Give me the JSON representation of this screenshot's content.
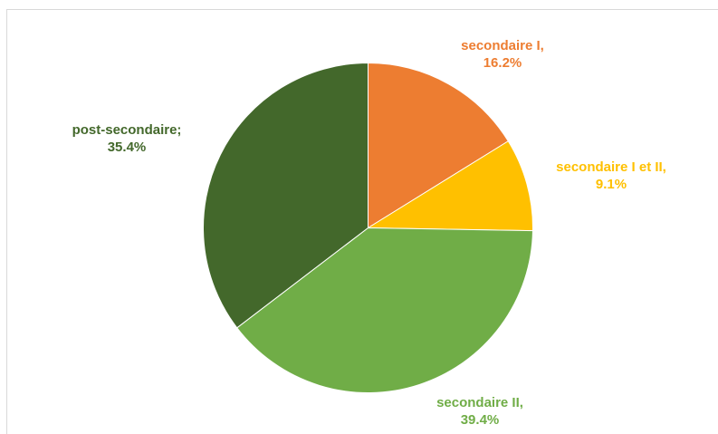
{
  "chart_data": {
    "type": "pie",
    "start_angle_deg": 0,
    "direction": "clockwise",
    "slices": [
      {
        "label": "secondaire I,",
        "value_label": "16.2%",
        "value": 16.2,
        "color": "#ED7D31"
      },
      {
        "label": "secondaire I et II,",
        "value_label": "9.1%",
        "value": 9.1,
        "color": "#FFC000"
      },
      {
        "label": "secondaire II,",
        "value_label": "39.4%",
        "value": 39.4,
        "color": "#70AD47"
      },
      {
        "label": "post-secondaire;",
        "value_label": "35.4%",
        "value": 35.4,
        "color": "#43682B"
      }
    ]
  }
}
